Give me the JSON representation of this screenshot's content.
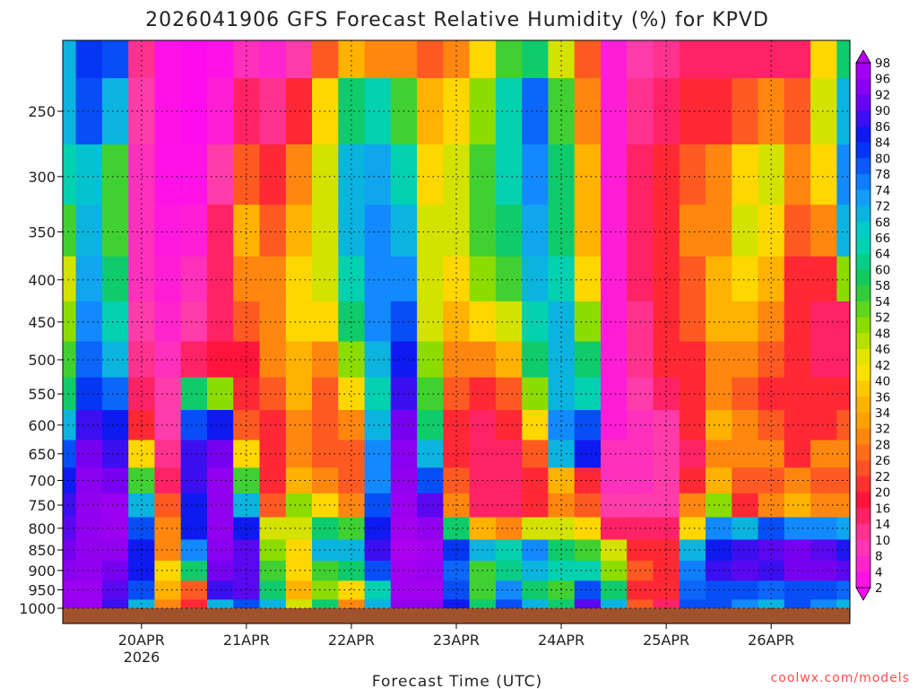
{
  "colors": {
    "ground": "#a0522d",
    "grid": "#000000",
    "credit": "#ff4d4d"
  },
  "credit": "coolwx.com/models",
  "chart_data": {
    "type": "heatmap",
    "title": "2026041906 GFS Forecast Relative Humidity (%) for KPVD",
    "xlabel": "Forecast Time (UTC)",
    "ylabel": "",
    "x_ticks": [
      "20APR",
      "21APR",
      "22APR",
      "23APR",
      "24APR",
      "25APR",
      "26APR"
    ],
    "x_year_label": "2026",
    "x_range": [
      "2026-04-19 06:00",
      "2026-04-26 18:00"
    ],
    "y_ticks": [
      250,
      300,
      350,
      400,
      450,
      500,
      550,
      600,
      650,
      700,
      750,
      800,
      850,
      900,
      950,
      1000
    ],
    "y_range_hPa": [
      200,
      1000
    ],
    "y_scale": "log-pressure (inverted)",
    "colorbar": {
      "labels": [
        98,
        96,
        92,
        90,
        86,
        84,
        80,
        78,
        74,
        72,
        68,
        66,
        64,
        60,
        58,
        54,
        52,
        48,
        46,
        42,
        40,
        36,
        34,
        32,
        28,
        26,
        22,
        20,
        16,
        14,
        10,
        8,
        4,
        2
      ],
      "range": [
        0,
        100
      ],
      "unit": "%"
    },
    "times": [
      "19 06Z",
      "19 12Z",
      "19 18Z",
      "20 00Z",
      "20 06Z",
      "20 12Z",
      "20 18Z",
      "21 00Z",
      "21 06Z",
      "21 12Z",
      "21 18Z",
      "22 00Z",
      "22 06Z",
      "22 12Z",
      "22 18Z",
      "23 00Z",
      "23 06Z",
      "23 12Z",
      "23 18Z",
      "24 00Z",
      "24 06Z",
      "24 12Z",
      "24 18Z",
      "25 00Z",
      "25 06Z",
      "25 12Z",
      "25 18Z",
      "26 00Z",
      "26 06Z",
      "26 12Z",
      "26 18Z"
    ],
    "levels_hPa": [
      1000,
      950,
      900,
      850,
      800,
      750,
      700,
      650,
      600,
      550,
      500,
      450,
      400,
      350,
      300,
      250,
      200
    ],
    "rh_percent": [
      [
        95,
        96,
        88,
        70,
        30,
        20,
        70,
        80,
        70,
        45,
        60,
        30,
        70,
        95,
        95,
        85,
        60,
        80,
        70,
        60,
        90,
        70,
        25,
        15,
        80,
        80,
        75,
        70,
        80,
        75,
        70
      ],
      [
        96,
        96,
        90,
        80,
        35,
        25,
        88,
        90,
        60,
        35,
        50,
        40,
        65,
        97,
        97,
        80,
        55,
        75,
        60,
        55,
        80,
        60,
        20,
        20,
        78,
        80,
        80,
        78,
        80,
        80,
        78
      ],
      [
        94,
        95,
        92,
        85,
        40,
        60,
        92,
        90,
        55,
        40,
        55,
        60,
        80,
        97,
        96,
        78,
        55,
        62,
        70,
        65,
        65,
        50,
        25,
        20,
        76,
        88,
        90,
        88,
        92,
        92,
        90
      ],
      [
        92,
        95,
        95,
        85,
        30,
        75,
        94,
        90,
        50,
        40,
        70,
        70,
        88,
        98,
        97,
        82,
        70,
        65,
        75,
        60,
        55,
        45,
        20,
        20,
        70,
        85,
        88,
        90,
        92,
        90,
        86
      ],
      [
        90,
        95,
        96,
        80,
        30,
        85,
        95,
        85,
        45,
        45,
        60,
        55,
        85,
        97,
        95,
        60,
        35,
        30,
        45,
        45,
        40,
        15,
        15,
        15,
        40,
        75,
        70,
        80,
        75,
        75,
        72
      ],
      [
        88,
        95,
        96,
        70,
        25,
        85,
        95,
        70,
        25,
        50,
        40,
        30,
        80,
        96,
        90,
        30,
        15,
        15,
        20,
        30,
        25,
        10,
        10,
        10,
        30,
        50,
        20,
        30,
        35,
        30,
        30
      ],
      [
        85,
        94,
        92,
        55,
        15,
        88,
        95,
        55,
        20,
        35,
        30,
        25,
        75,
        95,
        80,
        25,
        15,
        15,
        20,
        35,
        20,
        8,
        8,
        10,
        20,
        35,
        25,
        25,
        30,
        25,
        25
      ],
      [
        80,
        92,
        88,
        40,
        12,
        88,
        92,
        40,
        20,
        30,
        25,
        25,
        75,
        94,
        70,
        20,
        15,
        15,
        25,
        70,
        85,
        8,
        8,
        10,
        15,
        30,
        30,
        30,
        20,
        30,
        30
      ],
      [
        70,
        88,
        85,
        20,
        10,
        80,
        85,
        25,
        20,
        30,
        25,
        30,
        70,
        92,
        60,
        20,
        15,
        20,
        40,
        75,
        80,
        5,
        8,
        10,
        20,
        35,
        30,
        25,
        20,
        20,
        25
      ],
      [
        60,
        82,
        78,
        15,
        10,
        60,
        50,
        20,
        25,
        35,
        25,
        40,
        65,
        88,
        55,
        25,
        20,
        25,
        50,
        70,
        65,
        5,
        10,
        15,
        20,
        30,
        25,
        20,
        20,
        20,
        20
      ],
      [
        55,
        78,
        70,
        12,
        8,
        15,
        18,
        18,
        30,
        35,
        30,
        50,
        70,
        85,
        50,
        30,
        30,
        35,
        60,
        70,
        60,
        5,
        12,
        20,
        20,
        30,
        30,
        25,
        20,
        15,
        15
      ],
      [
        50,
        75,
        65,
        10,
        6,
        10,
        15,
        25,
        30,
        40,
        40,
        60,
        75,
        80,
        45,
        35,
        40,
        45,
        65,
        70,
        50,
        5,
        12,
        20,
        25,
        35,
        35,
        30,
        20,
        15,
        15
      ],
      [
        45,
        72,
        60,
        8,
        5,
        8,
        15,
        30,
        30,
        40,
        45,
        65,
        75,
        75,
        45,
        40,
        50,
        55,
        70,
        65,
        40,
        5,
        15,
        20,
        25,
        35,
        40,
        35,
        20,
        20,
        50
      ],
      [
        55,
        70,
        55,
        8,
        4,
        5,
        15,
        35,
        25,
        35,
        45,
        70,
        75,
        70,
        45,
        45,
        55,
        60,
        72,
        60,
        35,
        5,
        15,
        20,
        30,
        30,
        45,
        40,
        25,
        30,
        70
      ],
      [
        65,
        68,
        55,
        8,
        3,
        3,
        10,
        25,
        20,
        30,
        45,
        70,
        72,
        65,
        40,
        45,
        55,
        65,
        75,
        60,
        35,
        5,
        15,
        20,
        25,
        30,
        40,
        45,
        30,
        40,
        75
      ],
      [
        70,
        80,
        70,
        10,
        3,
        2,
        5,
        15,
        12,
        20,
        40,
        60,
        65,
        55,
        35,
        40,
        50,
        65,
        78,
        55,
        30,
        5,
        12,
        15,
        20,
        20,
        25,
        30,
        25,
        45,
        70
      ],
      [
        70,
        82,
        80,
        12,
        3,
        2,
        3,
        8,
        6,
        10,
        25,
        35,
        30,
        30,
        25,
        30,
        40,
        55,
        60,
        45,
        25,
        5,
        10,
        12,
        15,
        15,
        15,
        15,
        15,
        40,
        60
      ]
    ]
  }
}
